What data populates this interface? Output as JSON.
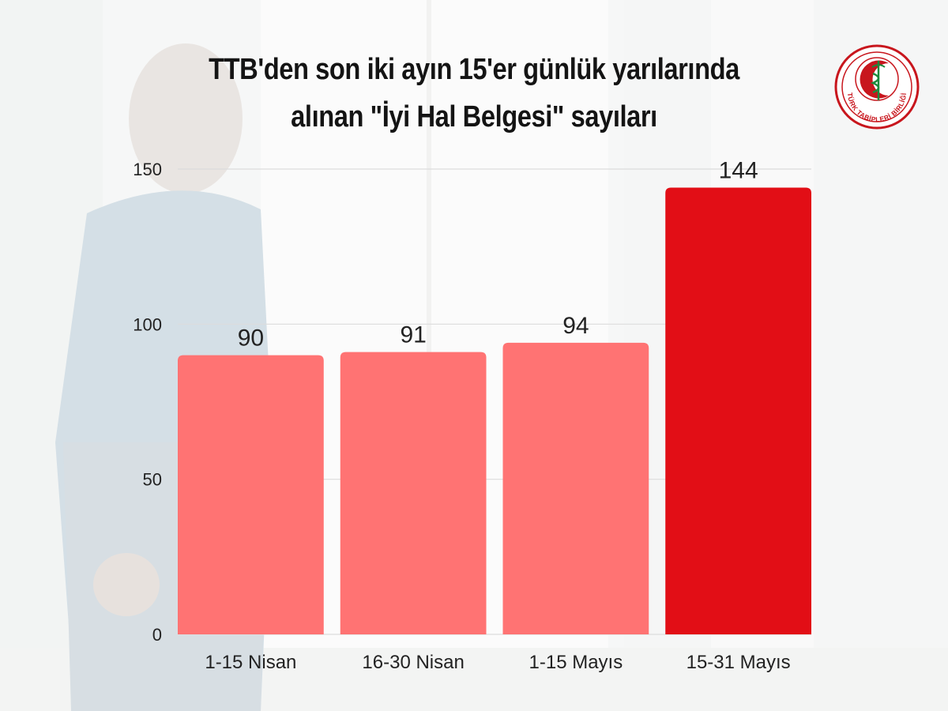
{
  "title": {
    "line1": "TTB'den son iki ayın 15'er günlük yarılarında",
    "line2": "alınan \"İyi Hal Belgesi\" sayıları"
  },
  "logo": {
    "text": "TÜRK TABİPLERİ BİRLİĞİ",
    "icon": "caduceus-crescent-icon"
  },
  "colors": {
    "bar_normal": "#ff7373",
    "bar_highlight": "#e20e16",
    "gridline": "#dcdcdc",
    "text": "#141414"
  },
  "chart_data": {
    "type": "bar",
    "title": "TTB'den son iki ayın 15'er günlük yarılarında alınan \"İyi Hal Belgesi\" sayıları",
    "categories": [
      "1-15 Nisan",
      "16-30 Nisan",
      "1-15 Mayıs",
      "15-31 Mayıs"
    ],
    "values": [
      90,
      91,
      94,
      144
    ],
    "data_labels": [
      "90",
      "91",
      "94",
      "144"
    ],
    "highlight_index": 3,
    "xlabel": "",
    "ylabel": "",
    "ylim": [
      0,
      150
    ],
    "yticks": [
      0,
      50,
      100,
      150
    ],
    "grid": true,
    "legend": "none"
  }
}
